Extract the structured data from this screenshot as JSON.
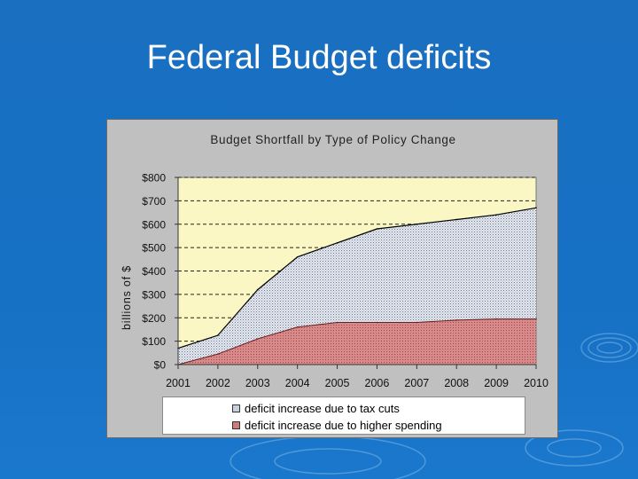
{
  "slide": {
    "title": "Federal Budget deficits"
  },
  "colors": {
    "background": "#1670c4",
    "plot_area": "#fbf7c4",
    "tax_cuts_fill": "#c8d0dc",
    "spending_fill": "#cc7a7a"
  },
  "chart_data": {
    "type": "area",
    "stacked": true,
    "title": "Budget Shortfall by Type of Policy Change",
    "xlabel": "",
    "ylabel": "billions of $",
    "x": [
      "2001",
      "2002",
      "2003",
      "2004",
      "2005",
      "2006",
      "2007",
      "2008",
      "2009",
      "2010"
    ],
    "ylim": [
      0,
      800
    ],
    "y_ticks": [
      0,
      100,
      200,
      300,
      400,
      500,
      600,
      700,
      800
    ],
    "y_tick_labels": [
      "$0",
      "$100",
      "$200",
      "$300",
      "$400",
      "$500",
      "$600",
      "$700",
      "$800"
    ],
    "gridlines": "dashed horizontal",
    "legend": "bottom",
    "series": [
      {
        "name": "deficit increase due to higher spending",
        "values": [
          0,
          45,
          110,
          160,
          180,
          180,
          180,
          190,
          195,
          195
        ]
      },
      {
        "name": "deficit increase due to tax cuts",
        "values": [
          70,
          80,
          210,
          300,
          340,
          400,
          420,
          430,
          445,
          475
        ]
      }
    ],
    "legend_entries": [
      "deficit increase due to tax cuts",
      "deficit increase due to higher spending"
    ]
  }
}
